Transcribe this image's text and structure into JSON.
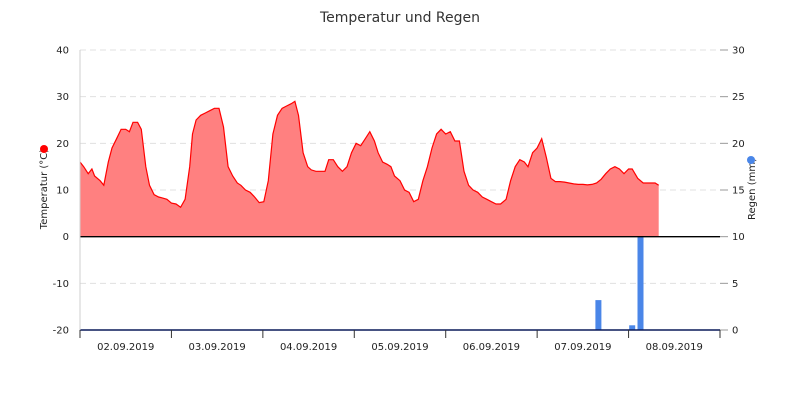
{
  "chart_data": {
    "type": "area",
    "title": "Temperatur und Regen",
    "y_left": {
      "label": "Temperatur (°C)",
      "ylim": [
        -20,
        40
      ],
      "ticks": [
        40,
        30,
        20,
        10,
        0,
        -10,
        -20
      ],
      "marker_color": "#ff0000"
    },
    "y_right": {
      "label": "Regen (mm)",
      "ylim": [
        0,
        30
      ],
      "ticks": [
        30,
        25,
        20,
        15,
        10,
        5,
        0
      ],
      "marker_color": "#4a86e8"
    },
    "x_axis": {
      "range_days": [
        0,
        7
      ],
      "ticks": [
        {
          "day": 0.5,
          "label": "02.09.2019"
        },
        {
          "day": 1.5,
          "label": "03.09.2019"
        },
        {
          "day": 2.5,
          "label": "04.09.2019"
        },
        {
          "day": 3.5,
          "label": "05.09.2019"
        },
        {
          "day": 4.5,
          "label": "06.09.2019"
        },
        {
          "day": 5.5,
          "label": "07.09.2019"
        },
        {
          "day": 6.5,
          "label": "08.09.2019"
        }
      ]
    },
    "grid": true,
    "series": [
      {
        "kind": "area",
        "axis": "left",
        "color": "#ff0000",
        "fill": "#ff8080",
        "points": [
          [
            0.0,
            16
          ],
          [
            0.04,
            15
          ],
          [
            0.09,
            13.5
          ],
          [
            0.13,
            14.5
          ],
          [
            0.16,
            13
          ],
          [
            0.22,
            12
          ],
          [
            0.26,
            11
          ],
          [
            0.31,
            16
          ],
          [
            0.35,
            19
          ],
          [
            0.4,
            21
          ],
          [
            0.45,
            23
          ],
          [
            0.5,
            23
          ],
          [
            0.54,
            22.5
          ],
          [
            0.58,
            24.5
          ],
          [
            0.63,
            24.5
          ],
          [
            0.67,
            23
          ],
          [
            0.72,
            15
          ],
          [
            0.76,
            11
          ],
          [
            0.81,
            9
          ],
          [
            0.86,
            8.5
          ],
          [
            0.9,
            8.3
          ],
          [
            0.95,
            8
          ],
          [
            1.0,
            7.2
          ],
          [
            1.05,
            7
          ],
          [
            1.1,
            6.3
          ],
          [
            1.15,
            8
          ],
          [
            1.2,
            15
          ],
          [
            1.23,
            22
          ],
          [
            1.27,
            25
          ],
          [
            1.32,
            26
          ],
          [
            1.37,
            26.5
          ],
          [
            1.42,
            27
          ],
          [
            1.47,
            27.5
          ],
          [
            1.52,
            27.5
          ],
          [
            1.57,
            23.5
          ],
          [
            1.62,
            15
          ],
          [
            1.67,
            13
          ],
          [
            1.72,
            11.5
          ],
          [
            1.76,
            11
          ],
          [
            1.81,
            10
          ],
          [
            1.86,
            9.5
          ],
          [
            1.91,
            8.5
          ],
          [
            1.96,
            7.3
          ],
          [
            2.01,
            7.5
          ],
          [
            2.06,
            12
          ],
          [
            2.11,
            22
          ],
          [
            2.16,
            26
          ],
          [
            2.21,
            27.5
          ],
          [
            2.26,
            28
          ],
          [
            2.31,
            28.5
          ],
          [
            2.35,
            29
          ],
          [
            2.39,
            26
          ],
          [
            2.44,
            18
          ],
          [
            2.49,
            15
          ],
          [
            2.53,
            14.3
          ],
          [
            2.58,
            14
          ],
          [
            2.63,
            14
          ],
          [
            2.68,
            14
          ],
          [
            2.72,
            16.5
          ],
          [
            2.77,
            16.5
          ],
          [
            2.82,
            15
          ],
          [
            2.87,
            14
          ],
          [
            2.92,
            15
          ],
          [
            2.97,
            18
          ],
          [
            3.02,
            20
          ],
          [
            3.07,
            19.5
          ],
          [
            3.12,
            21
          ],
          [
            3.17,
            22.5
          ],
          [
            3.22,
            20.5
          ],
          [
            3.26,
            18
          ],
          [
            3.31,
            16
          ],
          [
            3.36,
            15.5
          ],
          [
            3.4,
            15
          ],
          [
            3.44,
            13
          ],
          [
            3.5,
            12
          ],
          [
            3.55,
            10
          ],
          [
            3.6,
            9.5
          ],
          [
            3.65,
            7.5
          ],
          [
            3.7,
            8
          ],
          [
            3.75,
            12
          ],
          [
            3.8,
            15
          ],
          [
            3.85,
            19
          ],
          [
            3.9,
            22
          ],
          [
            3.95,
            23
          ],
          [
            4.0,
            22
          ],
          [
            4.05,
            22.5
          ],
          [
            4.1,
            20.5
          ],
          [
            4.15,
            20.5
          ],
          [
            4.2,
            14
          ],
          [
            4.25,
            11
          ],
          [
            4.3,
            10
          ],
          [
            4.35,
            9.5
          ],
          [
            4.4,
            8.5
          ],
          [
            4.45,
            8
          ],
          [
            4.5,
            7.5
          ],
          [
            4.55,
            7
          ],
          [
            4.6,
            7
          ],
          [
            4.66,
            8
          ],
          [
            4.71,
            12
          ],
          [
            4.76,
            15
          ],
          [
            4.81,
            16.5
          ],
          [
            4.86,
            16
          ],
          [
            4.9,
            15
          ],
          [
            4.95,
            18
          ],
          [
            5.0,
            19
          ],
          [
            5.05,
            21
          ],
          [
            5.1,
            17
          ],
          [
            5.15,
            12.5
          ],
          [
            5.2,
            11.8
          ],
          [
            5.25,
            11.8
          ],
          [
            5.3,
            11.7
          ],
          [
            5.35,
            11.5
          ],
          [
            5.4,
            11.3
          ],
          [
            5.45,
            11.2
          ],
          [
            5.5,
            11.2
          ],
          [
            5.55,
            11.1
          ],
          [
            5.6,
            11.2
          ],
          [
            5.65,
            11.5
          ],
          [
            5.7,
            12.3
          ],
          [
            5.75,
            13.5
          ],
          [
            5.8,
            14.5
          ],
          [
            5.85,
            15
          ],
          [
            5.9,
            14.5
          ],
          [
            5.95,
            13.5
          ],
          [
            6.0,
            14.5
          ],
          [
            6.04,
            14.5
          ],
          [
            6.1,
            12.5
          ],
          [
            6.16,
            11.5
          ],
          [
            6.21,
            11.5
          ],
          [
            6.25,
            11.5
          ],
          [
            6.29,
            11.5
          ],
          [
            6.33,
            11
          ]
        ]
      },
      {
        "kind": "bar",
        "axis": "right",
        "color": "#4a86e8",
        "points": [
          [
            5.67,
            3.2
          ],
          [
            6.04,
            0.5
          ],
          [
            6.13,
            10
          ]
        ]
      }
    ]
  }
}
